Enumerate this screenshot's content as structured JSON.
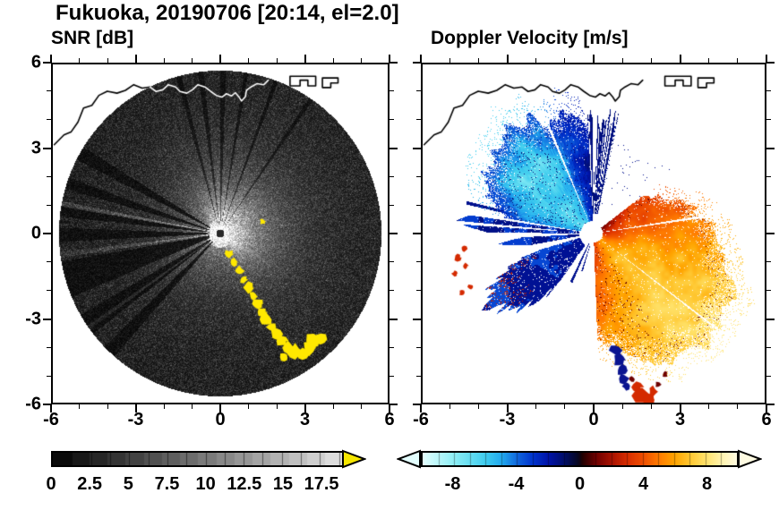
{
  "title": "Fukuoka, 20190706 [20:14, el=2.0]",
  "panels": {
    "snr": {
      "title": "SNR [dB]"
    },
    "velocity": {
      "title": "Doppler Velocity [m/s]"
    }
  },
  "axes": {
    "xlim": [
      -6,
      6
    ],
    "ylim": [
      -6,
      6
    ],
    "major_ticks": [
      -6,
      -3,
      0,
      3,
      6
    ],
    "major_tick_labels": [
      "-6",
      "-3",
      "0",
      "3",
      "6"
    ],
    "minor_tick_step": 1
  },
  "colorbars": {
    "snr": {
      "min": 0,
      "max": 19,
      "tick_step": 1.25,
      "label_values": [
        0,
        2.5,
        5,
        7.5,
        10,
        12.5,
        15,
        17.5
      ],
      "labels": [
        "0",
        "2.5",
        "5",
        "7.5",
        "10",
        "12.5",
        "15",
        "17.5"
      ],
      "scheme": "grayscale",
      "over_arrow_color": "#f5e600"
    },
    "velocity": {
      "min": -10,
      "max": 10,
      "tick_step": 1,
      "label_values": [
        -8,
        -4,
        0,
        4,
        8
      ],
      "labels": [
        "-8",
        "-4",
        "0",
        "4",
        "8"
      ],
      "under_arrow_color": "#e4ffff",
      "over_arrow_color": "#fffbe2"
    }
  },
  "chart_data": {
    "type": "radar_ppi_pair",
    "site": "Fukuoka",
    "date": "20190706",
    "time": "20:14",
    "elevation_deg": 2.0,
    "panels": [
      {
        "name": "snr",
        "title": "SNR [dB]",
        "units": "dB",
        "extent": [
          -6,
          6,
          -6,
          6
        ],
        "colorbar_ticks": [
          0,
          2.5,
          5,
          7.5,
          10,
          12.5,
          15,
          17.5
        ],
        "colormap": "grayscale, yellow over-range"
      },
      {
        "name": "doppler_velocity",
        "title": "Doppler Velocity [m/s]",
        "units": "m/s",
        "extent": [
          -6,
          6,
          -6,
          6
        ],
        "colorbar_ticks": [
          -8,
          -4,
          0,
          4,
          8
        ],
        "colormap": "cyan-blue to darkred-red-orange-yellow diverging"
      }
    ],
    "velocity_colormap_stops": [
      [
        -10,
        "#e4ffff"
      ],
      [
        -8,
        "#8ceef5"
      ],
      [
        -6,
        "#3eccee"
      ],
      [
        -5,
        "#22aaee"
      ],
      [
        -4,
        "#1166dd"
      ],
      [
        -3,
        "#0033cc"
      ],
      [
        -2,
        "#0013a8"
      ],
      [
        -1,
        "#000d66"
      ],
      [
        -0.15,
        "#070722"
      ],
      [
        0.15,
        "#220000"
      ],
      [
        1,
        "#6e0000"
      ],
      [
        2,
        "#a81200"
      ],
      [
        3,
        "#d92d00"
      ],
      [
        4,
        "#ee4e00"
      ],
      [
        5,
        "#ff7b00"
      ],
      [
        6,
        "#ffa400"
      ],
      [
        7,
        "#ffc832"
      ],
      [
        8,
        "#ffe26a"
      ],
      [
        9,
        "#fff3ad"
      ],
      [
        10,
        "#fffbe2"
      ]
    ],
    "snr_features": {
      "disk_radius": 5.78,
      "bright_sector_deg": [
        -35,
        100
      ],
      "blocked_wedges_deg": [
        [
          148,
          153
        ],
        [
          160,
          164
        ],
        [
          170,
          174
        ],
        [
          178,
          183
        ],
        [
          190,
          203
        ],
        [
          210,
          218
        ],
        [
          224,
          229
        ]
      ],
      "thin_dark_rays_deg": [
        [
          55,
          56.5
        ],
        [
          69,
          70.5
        ],
        [
          80,
          81.5
        ],
        [
          88,
          90
        ],
        [
          96,
          98
        ],
        [
          104,
          106
        ]
      ],
      "bright_rays_deg": [
        [
          168.5,
          170.5
        ],
        [
          186.5,
          188.5
        ],
        [
          214.5,
          216
        ]
      ],
      "clutter_color": "#ffe800",
      "clutter_blobs": [
        [
          0.32,
          -0.72,
          0.14
        ],
        [
          0.5,
          -1.02,
          0.13
        ],
        [
          0.68,
          -1.32,
          0.16
        ],
        [
          0.84,
          -1.62,
          0.14
        ],
        [
          1.0,
          -1.92,
          0.17
        ],
        [
          1.18,
          -2.22,
          0.15
        ],
        [
          1.36,
          -2.5,
          0.18
        ],
        [
          1.5,
          -2.78,
          0.15
        ],
        [
          1.66,
          -3.05,
          0.19
        ],
        [
          1.84,
          -3.32,
          0.16
        ],
        [
          2.0,
          -3.58,
          0.2
        ],
        [
          2.2,
          -3.82,
          0.22
        ],
        [
          2.42,
          -4.05,
          0.19
        ],
        [
          2.68,
          -4.22,
          0.26
        ],
        [
          2.95,
          -4.28,
          0.2
        ],
        [
          3.18,
          -4.05,
          0.24
        ],
        [
          3.35,
          -3.82,
          0.27
        ],
        [
          3.6,
          -3.75,
          0.2
        ],
        [
          1.52,
          0.42,
          0.1
        ],
        [
          2.3,
          -4.4,
          0.16
        ]
      ]
    },
    "velocity_features": {
      "center_hole_radius": 0.28,
      "blue_fan": {
        "az": [
          93,
          170
        ],
        "r_outer_pts": [
          [
            93,
            4.0
          ],
          [
            105,
            4.3
          ],
          [
            120,
            4.6
          ],
          [
            135,
            4.5
          ],
          [
            150,
            4.2
          ],
          [
            160,
            3.9
          ],
          [
            170,
            3.3
          ]
        ],
        "v_pts": [
          [
            93,
            -2.0
          ],
          [
            103,
            -2.8
          ],
          [
            115,
            -5.2
          ],
          [
            130,
            -6.4
          ],
          [
            145,
            -6.5
          ],
          [
            158,
            -5.6
          ],
          [
            170,
            -4.3
          ]
        ]
      },
      "north_streaks": {
        "az": [
          78,
          93
        ],
        "r": [
          0.7,
          4.0
        ]
      },
      "west_spike1": {
        "az": [
          171.5,
          179.5
        ],
        "len_pts": [
          [
            171.5,
            4.4
          ],
          [
            175,
            4.9
          ],
          [
            179.5,
            3.7
          ]
        ],
        "white_core": [
          174.6,
          176.0
        ]
      },
      "west_spike2": {
        "az": [
          183,
          190.5
        ],
        "len_pts": [
          [
            183,
            2.5
          ],
          [
            186.5,
            3.4
          ],
          [
            190.5,
            2.3
          ]
        ]
      },
      "sw_wedge": {
        "az": [
          197,
          235
        ],
        "len_pts": [
          [
            197,
            2.3
          ],
          [
            205,
            3.6
          ],
          [
            212,
            4.5
          ],
          [
            222,
            4.2
          ],
          [
            230,
            3.2
          ],
          [
            235,
            2.4
          ]
        ]
      },
      "small_spikes": [
        {
          "az": [
            165.5,
            167
          ],
          "len": 4.6
        },
        {
          "az": [
            244,
            247
          ],
          "len": 1.9
        },
        {
          "az": [
            252,
            254
          ],
          "len": 1.4
        }
      ],
      "warm_fan": {
        "az": [
          -88,
          38
        ],
        "r_outer_pts": [
          [
            -88,
            3.6
          ],
          [
            -75,
            4.6
          ],
          [
            -60,
            5.2
          ],
          [
            -45,
            5.7
          ],
          [
            -30,
            5.4
          ],
          [
            -15,
            4.9
          ],
          [
            0,
            4.3
          ],
          [
            10,
            3.8
          ],
          [
            25,
            3.0
          ],
          [
            38,
            2.0
          ]
        ],
        "v_pts": [
          [
            -88,
            4.4
          ],
          [
            -75,
            5.4
          ],
          [
            -60,
            6.6
          ],
          [
            -45,
            7.3
          ],
          [
            -30,
            6.8
          ],
          [
            -15,
            6.0
          ],
          [
            0,
            5.0
          ],
          [
            10,
            4.4
          ],
          [
            25,
            3.4
          ],
          [
            38,
            2.6
          ]
        ]
      },
      "white_slivers_signed": [
        [
          -38.4,
          -37.7
        ],
        [
          8.2,
          9.6
        ]
      ],
      "white_slivers_az360": [
        [
          112,
          113.2
        ]
      ],
      "bottom_blue_blobs": [
        [
          0.78,
          -4.15,
          0.2
        ],
        [
          0.9,
          -4.5,
          0.22
        ],
        [
          1.0,
          -4.85,
          0.2
        ],
        [
          1.07,
          -5.15,
          0.17
        ],
        [
          1.14,
          -5.42,
          0.13
        ]
      ],
      "bottom_red_blobs": [
        [
          1.5,
          -5.45,
          0.22
        ],
        [
          1.7,
          -5.75,
          0.28
        ],
        [
          1.93,
          -5.88,
          0.2
        ],
        [
          2.08,
          -5.6,
          0.16
        ]
      ],
      "dark_red_specks": [
        [
          2.27,
          -5.35,
          0.11
        ],
        [
          1.33,
          -5.18,
          0.09
        ],
        [
          2.5,
          -5.0,
          0.09
        ]
      ],
      "west_red_specks": [
        [
          -4.55,
          -0.55,
          0.1
        ],
        [
          -4.78,
          -0.85,
          0.12
        ],
        [
          -4.5,
          -1.15,
          0.1
        ],
        [
          -4.88,
          -1.42,
          0.09
        ],
        [
          -4.3,
          -1.9,
          0.1
        ],
        [
          -4.62,
          -2.1,
          0.09
        ]
      ],
      "blue_blob_color": "#0a1490",
      "red_blob_color": "#d42a00",
      "dark_red_color": "#6e0000"
    },
    "coastline_paths": [
      [
        [
          -5.95,
          3.15
        ],
        [
          -5.6,
          3.5
        ],
        [
          -5.35,
          3.6
        ],
        [
          -5.1,
          3.95
        ],
        [
          -4.9,
          4.45
        ],
        [
          -4.6,
          4.55
        ],
        [
          -4.35,
          4.9
        ],
        [
          -4.05,
          5.05
        ],
        [
          -3.7,
          4.98
        ],
        [
          -3.4,
          5.08
        ],
        [
          -3.1,
          5.28
        ],
        [
          -2.8,
          5.16
        ],
        [
          -2.52,
          5.2
        ],
        [
          -2.3,
          5.04
        ],
        [
          -2.06,
          5.1
        ],
        [
          -1.86,
          5.28
        ],
        [
          -1.6,
          5.2
        ],
        [
          -1.44,
          5.04
        ],
        [
          -1.2,
          4.98
        ],
        [
          -1.0,
          5.1
        ],
        [
          -0.8,
          5.28
        ],
        [
          -0.55,
          5.2
        ],
        [
          -0.34,
          5.04
        ],
        [
          -0.14,
          4.9
        ],
        [
          0.06,
          4.84
        ],
        [
          0.22,
          4.96
        ],
        [
          0.4,
          4.88
        ],
        [
          0.54,
          5.0
        ],
        [
          0.66,
          4.86
        ],
        [
          0.76,
          4.7
        ],
        [
          0.9,
          4.86
        ],
        [
          0.94,
          5.08
        ],
        [
          1.1,
          5.2
        ],
        [
          1.32,
          5.32
        ],
        [
          1.56,
          5.28
        ],
        [
          1.72,
          5.44
        ]
      ],
      [
        [
          2.5,
          5.58
        ],
        [
          2.5,
          5.24
        ],
        [
          2.86,
          5.24
        ],
        [
          2.86,
          5.44
        ],
        [
          3.14,
          5.44
        ],
        [
          3.14,
          5.24
        ],
        [
          3.42,
          5.24
        ],
        [
          3.42,
          5.58
        ],
        [
          2.5,
          5.58
        ]
      ],
      [
        [
          3.66,
          5.52
        ],
        [
          3.66,
          5.18
        ],
        [
          3.96,
          5.18
        ],
        [
          3.96,
          5.34
        ],
        [
          4.22,
          5.34
        ],
        [
          4.22,
          5.52
        ],
        [
          3.66,
          5.52
        ]
      ]
    ],
    "coastline_color_on_disk": "#ffffff",
    "coastline_color_on_white": "#000000"
  }
}
